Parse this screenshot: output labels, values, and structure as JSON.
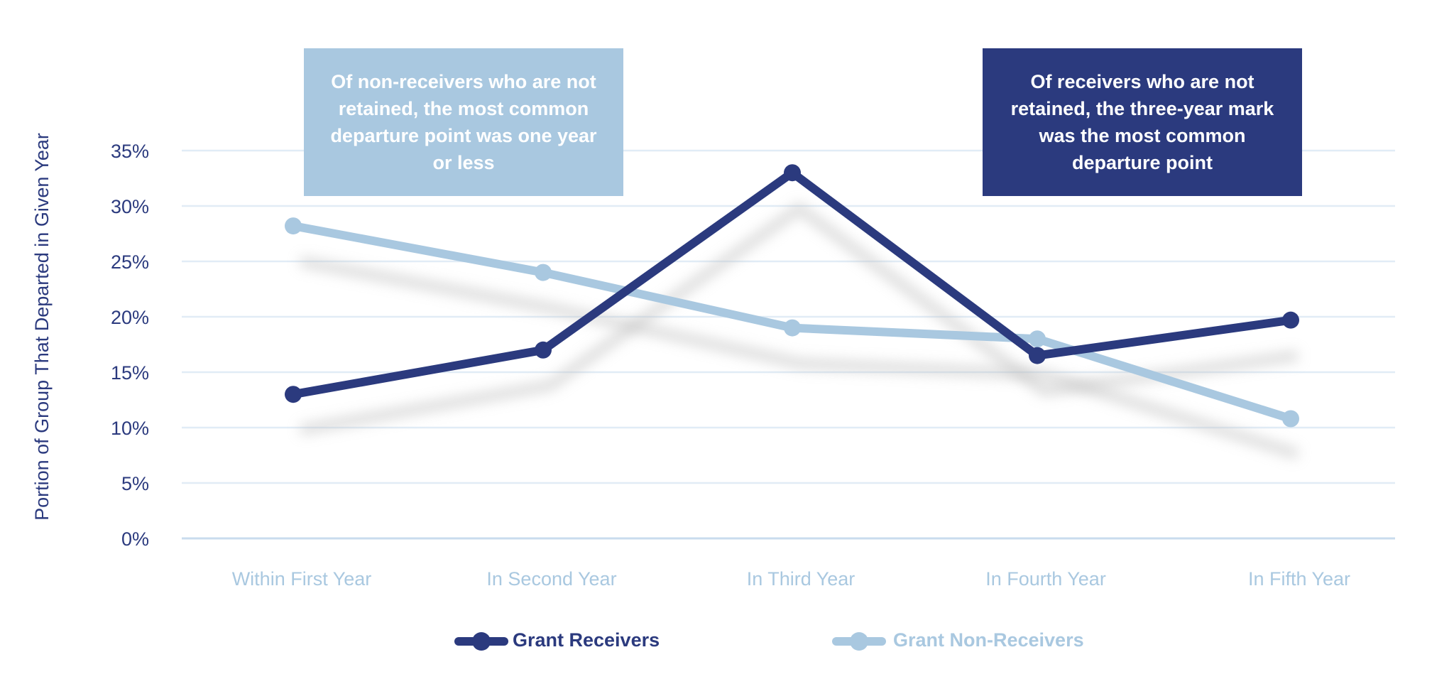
{
  "chart_data": {
    "type": "line",
    "title": "",
    "ylabel": "Portion of Group That Departed in Given Year",
    "xlabel": "",
    "categories": [
      "Within First Year",
      "In Second Year",
      "In Third Year",
      "In Fourth Year",
      "In Fifth Year"
    ],
    "yticks": [
      "0%",
      "5%",
      "10%",
      "15%",
      "20%",
      "25%",
      "30%",
      "35%"
    ],
    "ylim": [
      0,
      35
    ],
    "grid": true,
    "legend_position": "bottom",
    "series": [
      {
        "name": "Grant Receivers",
        "color": "#2b3a7e",
        "values": [
          13,
          17,
          33,
          16.5,
          19.7
        ]
      },
      {
        "name": "Grant Non-Receivers",
        "color": "#a9c8e0",
        "values": [
          28.2,
          24,
          19,
          18,
          10.8
        ]
      }
    ],
    "annotations": [
      {
        "text": "Of non-receivers who are not retained, the most common departure point was one year or less",
        "color": "#a9c8e0"
      },
      {
        "text": "Of receivers who are not retained, the three-year mark was the most common departure point",
        "color": "#2b3a7e"
      }
    ]
  }
}
